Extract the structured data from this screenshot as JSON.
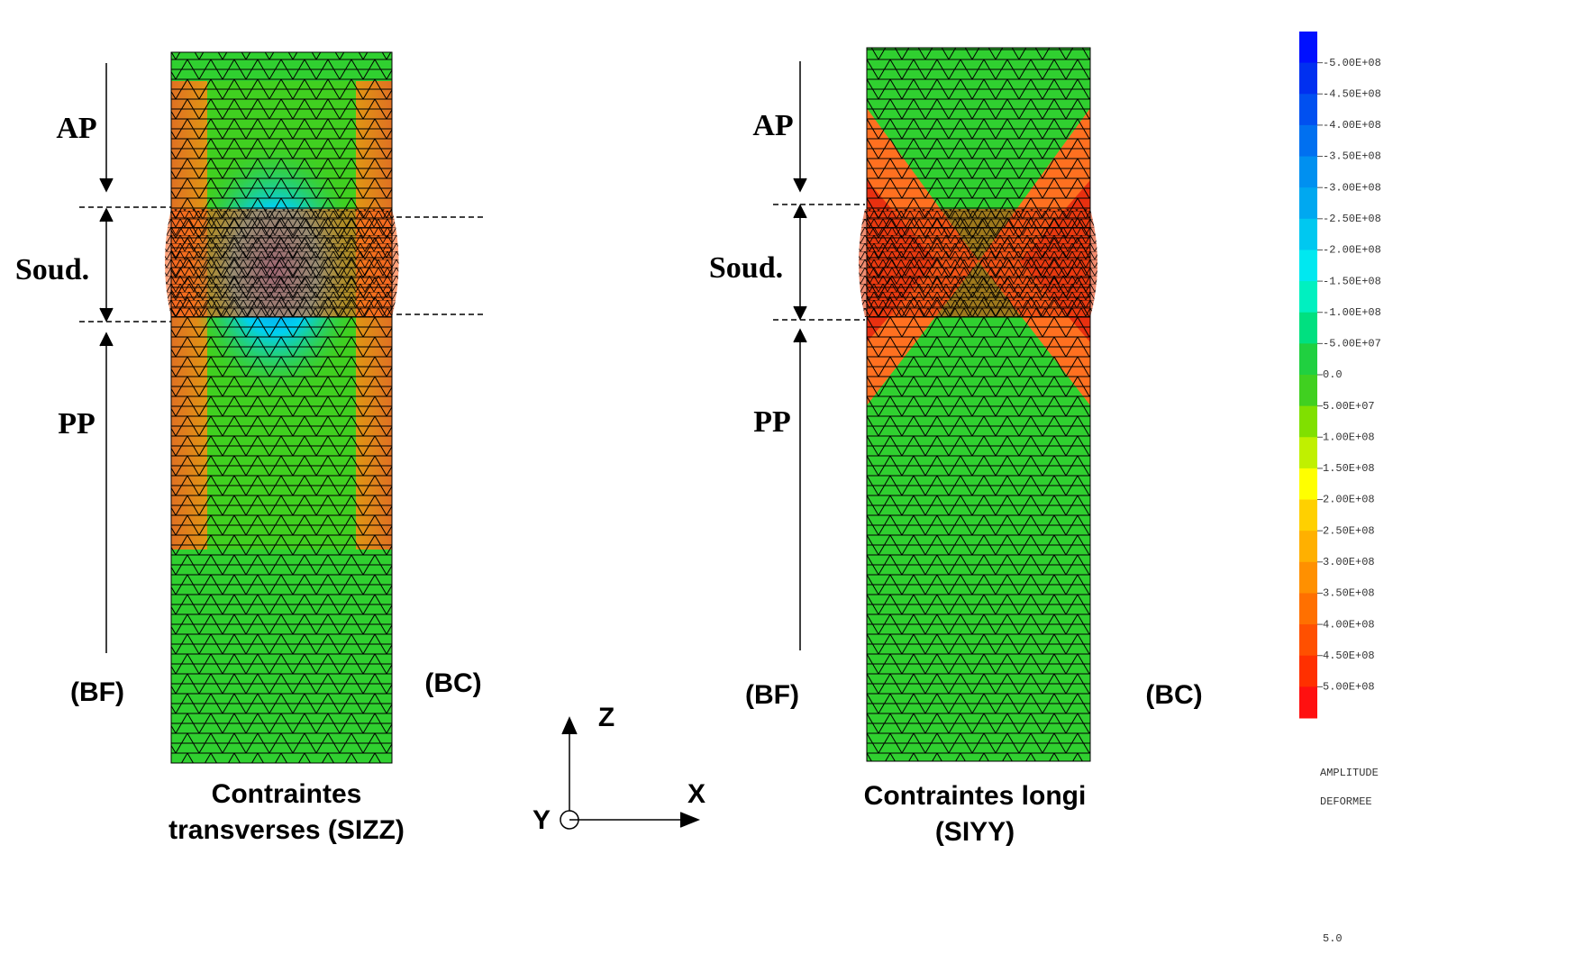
{
  "panels": [
    {
      "title": [
        "Contraintes",
        "transverses (SIZZ)"
      ],
      "zones": [
        "AP",
        "Soud.",
        "PP"
      ],
      "sides": [
        "(BF)",
        "(BC)"
      ]
    },
    {
      "title": [
        "Contraintes longi",
        "(SIYY)"
      ],
      "zones": [
        "AP",
        "Soud.",
        "PP"
      ],
      "sides": [
        "(BF)",
        "(BC)"
      ]
    }
  ],
  "axes": {
    "z": "Z",
    "x": "X",
    "y": "Y"
  },
  "colorbar": {
    "labels": [
      "-5.00E+08",
      "-4.50E+08",
      "-4.00E+08",
      "-3.50E+08",
      "-3.00E+08",
      "-2.50E+08",
      "-2.00E+08",
      "-1.50E+08",
      "-1.00E+08",
      "-5.00E+07",
      "0.0",
      "5.00E+07",
      "1.00E+08",
      "1.50E+08",
      "2.00E+08",
      "2.50E+08",
      "3.00E+08",
      "3.50E+08",
      "4.00E+08",
      "4.50E+08",
      "5.00E+08"
    ],
    "colors": [
      "#0010ff",
      "#0030f0",
      "#0050f0",
      "#0070f0",
      "#0090f0",
      "#00a8f0",
      "#00c8f0",
      "#00e8f0",
      "#00f0c0",
      "#00e080",
      "#20d040",
      "#40d020",
      "#80e000",
      "#c0f000",
      "#ffff00",
      "#ffd000",
      "#ffb000",
      "#ff9000",
      "#ff7000",
      "#ff5000",
      "#ff3000",
      "#ff1010"
    ]
  },
  "footer": [
    "AMPLITUDE",
    "DEFORMEE",
    "5.0"
  ]
}
